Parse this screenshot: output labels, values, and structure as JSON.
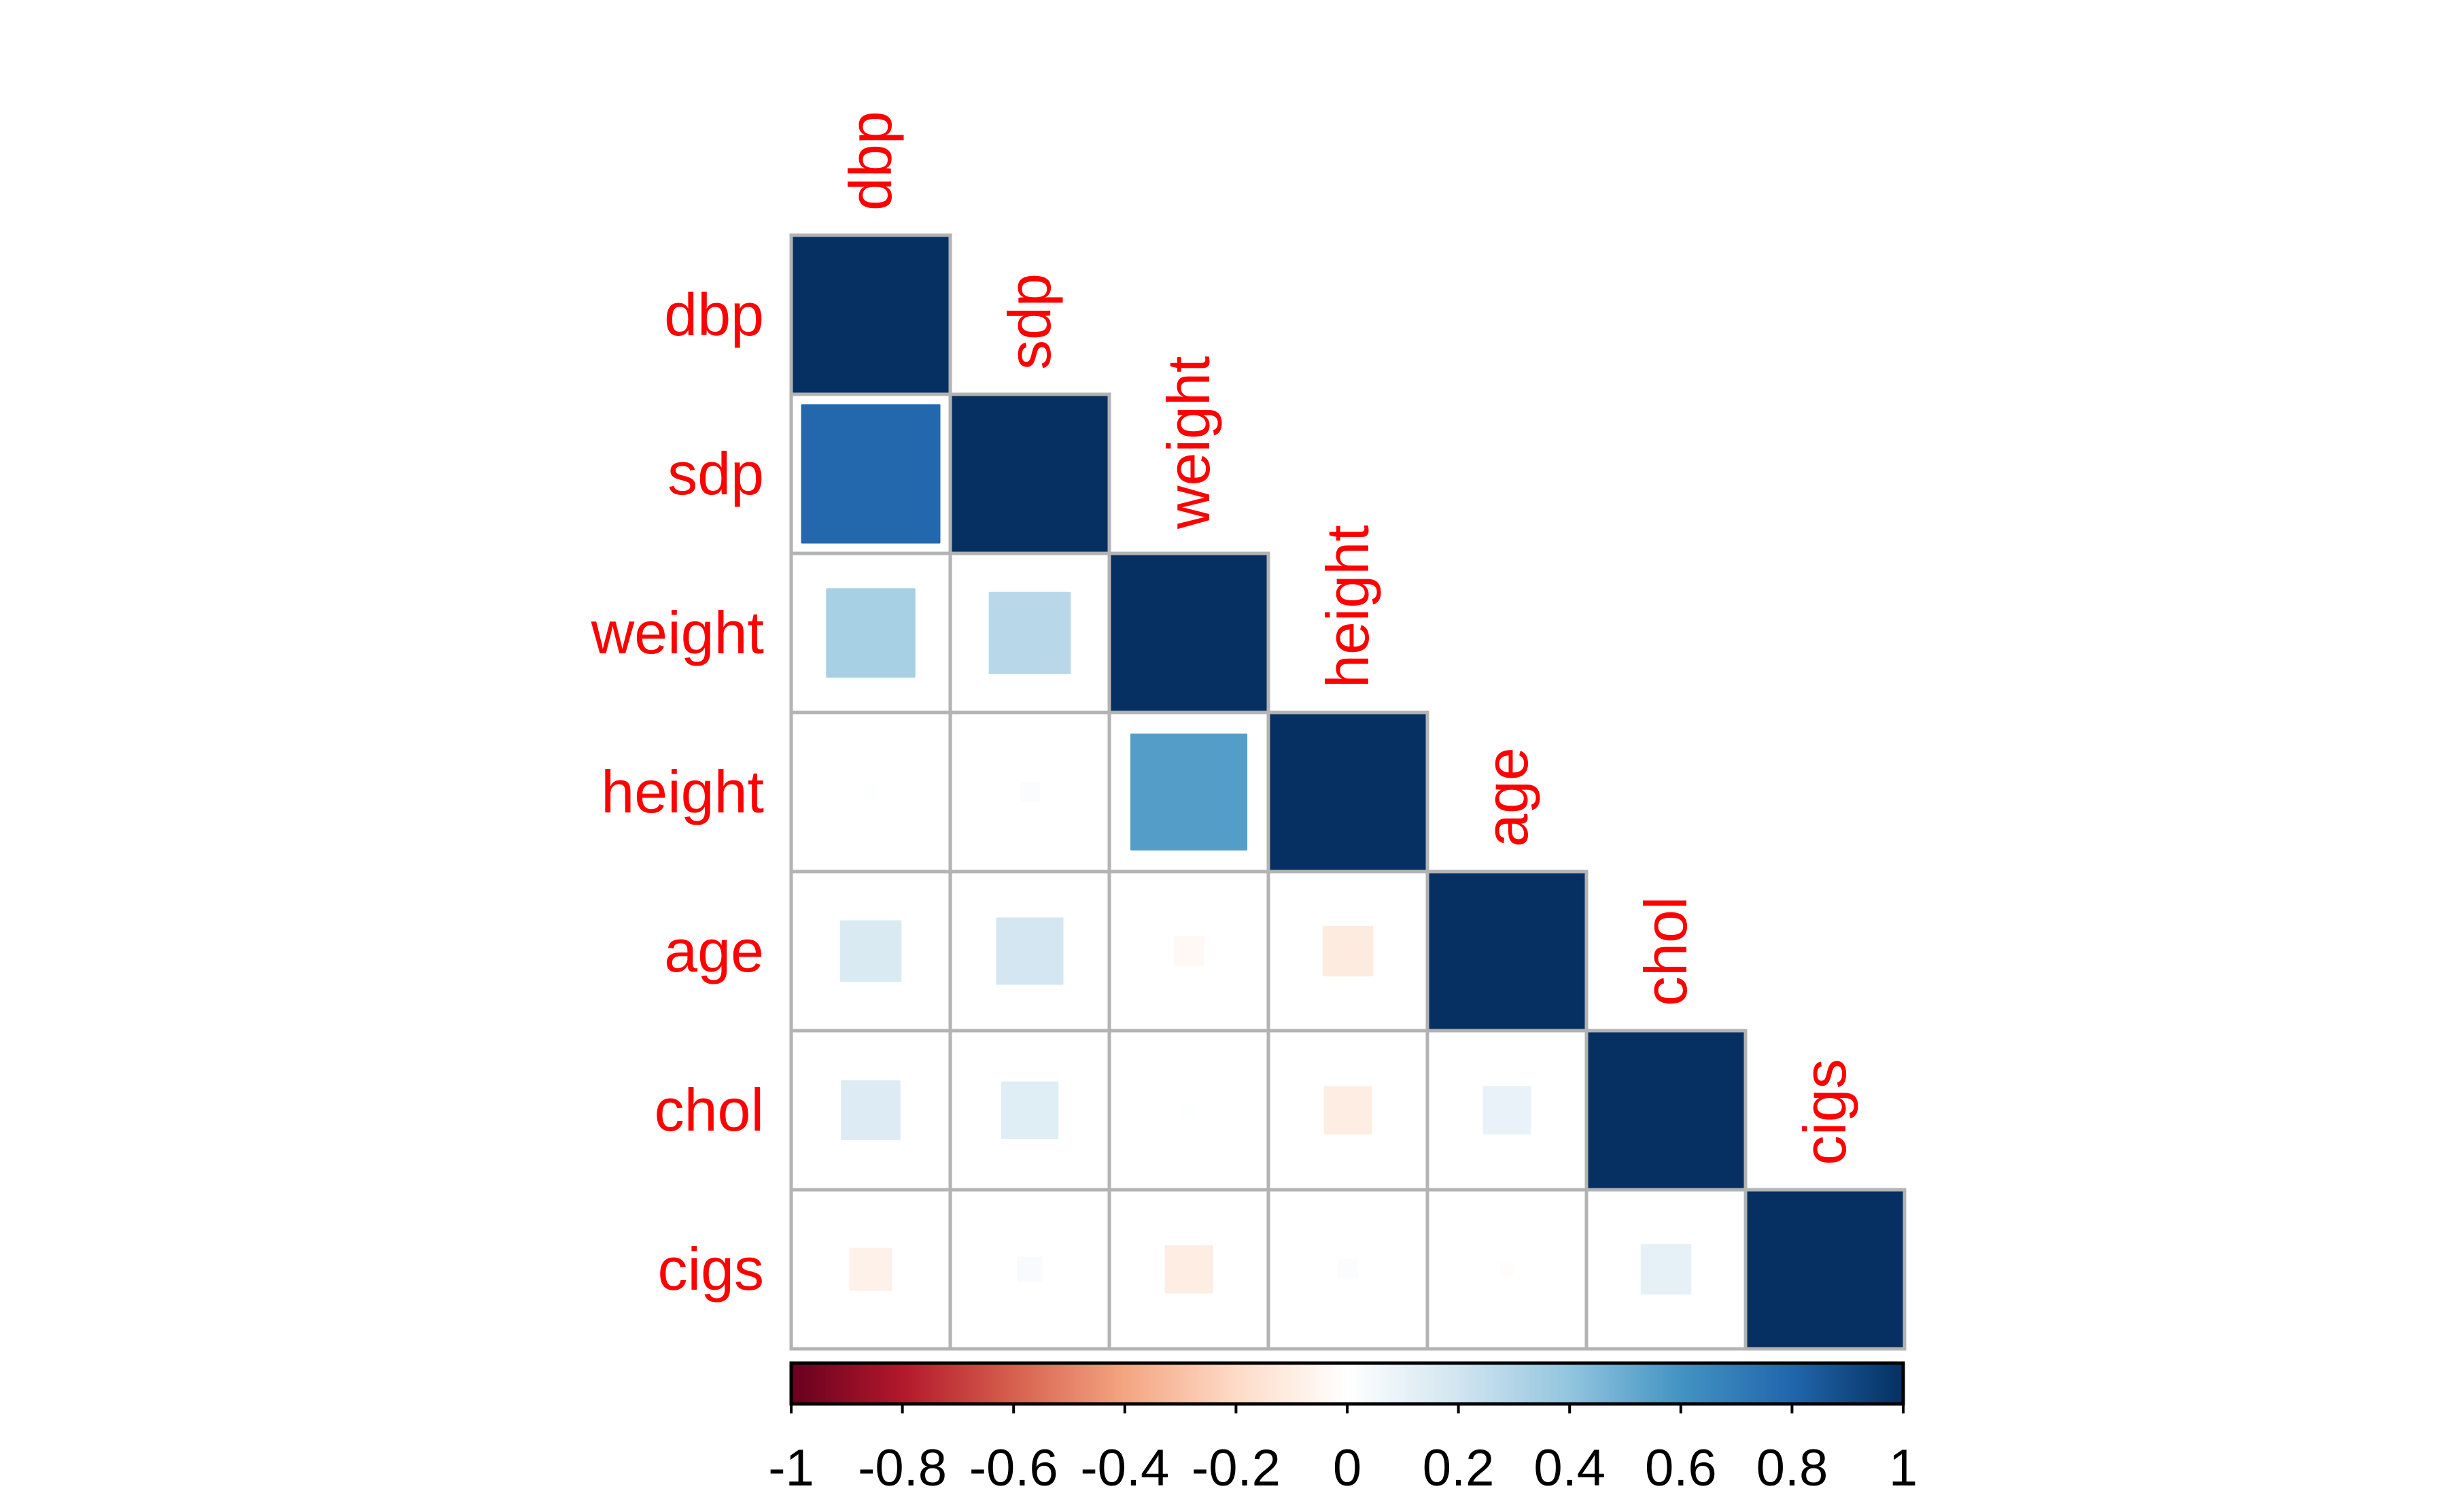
{
  "chart_data": {
    "type": "heatmap",
    "subtype": "correlation-matrix-lower-square",
    "variables": [
      "dbp",
      "sdp",
      "weight",
      "height",
      "age",
      "chol",
      "cigs"
    ],
    "matrix": [
      [
        1.0,
        0.79,
        0.33,
        0.01,
        0.16,
        0.15,
        -0.08
      ],
      [
        0.79,
        1.0,
        0.28,
        0.02,
        0.19,
        0.14,
        0.03
      ],
      [
        0.33,
        0.28,
        1.0,
        0.56,
        -0.04,
        0.01,
        -0.1
      ],
      [
        0.01,
        0.02,
        0.56,
        1.0,
        -0.11,
        -0.1,
        0.02
      ],
      [
        0.16,
        0.19,
        -0.04,
        -0.11,
        1.0,
        0.1,
        -0.01
      ],
      [
        0.15,
        0.14,
        0.01,
        -0.1,
        0.1,
        1.0,
        0.11
      ],
      [
        -0.08,
        0.03,
        -0.1,
        0.02,
        -0.01,
        0.11,
        1.0
      ]
    ],
    "label_color": "#FF0000",
    "colorbar": {
      "range": [
        -1,
        1
      ],
      "ticks": [
        "-1",
        "-0.8",
        "-0.6",
        "-0.4",
        "-0.2",
        "0",
        "0.2",
        "0.4",
        "0.6",
        "0.8",
        "1"
      ],
      "palette": [
        "#67001F",
        "#B2182B",
        "#D6604D",
        "#F4A582",
        "#FDDBC7",
        "#FFFFFF",
        "#D1E5F0",
        "#92C5DE",
        "#4393C3",
        "#2166AC",
        "#053061"
      ],
      "placement": "bottom"
    },
    "grid_color": "#B3B3B3"
  }
}
